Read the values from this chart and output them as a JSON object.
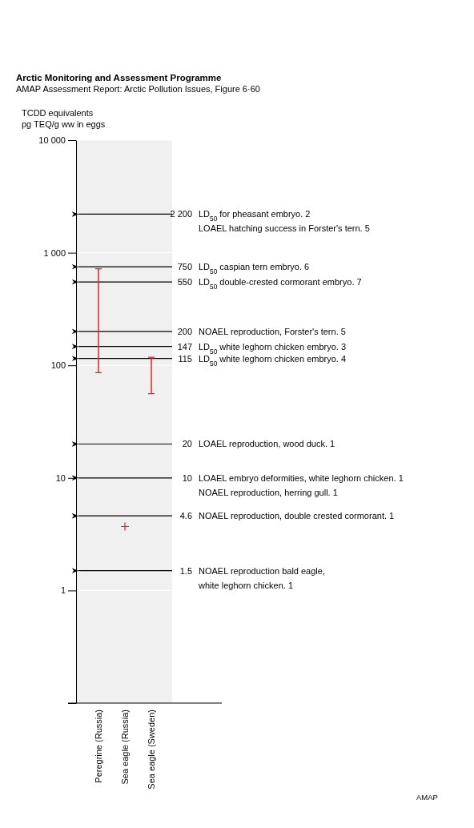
{
  "chart_data": {
    "type": "bar",
    "title": "Arctic Monitoring and Assessment Programme",
    "subtitle": "AMAP Assessment Report: Arctic Pollution Issues, Figure 6·60",
    "ylabel": "TCDD equivalents\npg TEQ/g ww in eggs",
    "categories": [
      "Peregrine (Russia)",
      "Sea eagle (Russia)",
      "Sea eagle (Sweden)"
    ],
    "series": [
      {
        "color": "#e8231e",
        "base": [
          86,
          null,
          56
        ],
        "values": [
          634,
          null,
          62
        ]
      },
      {
        "type": "scatter",
        "color": "#e8231e",
        "marker": "cross",
        "values": [
          null,
          3.7,
          null
        ]
      }
    ],
    "log": "y",
    "ylim": [
      0.1,
      10000
    ],
    "yticks": [
      {
        "value": 0.1,
        "label": null
      },
      1,
      10,
      100,
      {
        "value": 1000,
        "label": "1 000"
      },
      {
        "value": 10000,
        "label": "10 000"
      }
    ],
    "grid": "y",
    "ref_lines": [
      {
        "axis": "y",
        "value": 2200,
        "label": "2 200  LD$_{50}$ for pheasant embryo. 2\nLOAEL hatching success in Forster's tern. 5"
      },
      {
        "axis": "y",
        "value": 750,
        "label": "750  LD$_{50}$ caspian tern embryo. 6"
      },
      {
        "axis": "y",
        "value": 550,
        "label": "550  LD$_{50}$ double-crested cormorant embryo. 7"
      },
      {
        "axis": "y",
        "value": 200,
        "label": "200  NOAEL reproduction, Forster's tern. 5"
      },
      {
        "axis": "y",
        "value": 147,
        "label": "147  LD$_{50}$ white leghorn chicken embryo. 3"
      },
      {
        "axis": "y",
        "value": 115,
        "label": "115  LD$_{50}$ white leghorn chicken embryo. 4"
      },
      {
        "axis": "y",
        "value": 20,
        "label": "20  LOAEL reproduction, wood duck. 1"
      },
      {
        "axis": "y",
        "value": 10,
        "label": "10  LOAEL embryo deformities, white leghorn chicken. 1\nNOAEL reproduction, herring gull. 1"
      },
      {
        "axis": "y",
        "value": 4.6,
        "label": "4.6  NOAEL reproduction, double crested cormorant. 1"
      },
      {
        "axis": "y",
        "value": 1.5,
        "label": "1.5  NOAEL reproduction bald eagle,\nwhite leghorn chicken. 1"
      }
    ],
    "annotations": [
      "AMAP"
    ]
  }
}
